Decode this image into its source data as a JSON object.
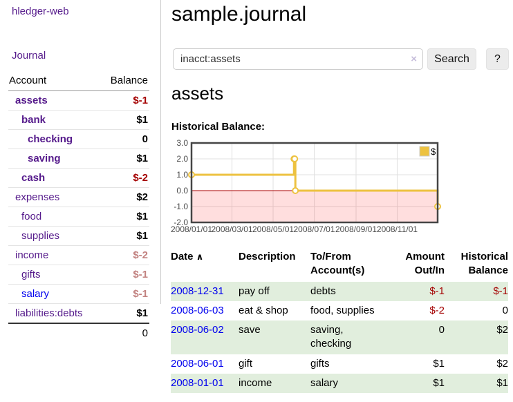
{
  "app": {
    "brand": "hledger-web"
  },
  "colors": {
    "accent_purple": "#551a8b",
    "link_blue": "#0000ee",
    "negative_strong": "#a40000",
    "negative_dim": "#c28280",
    "row_stripe_green": "#e1eedd",
    "chart_line_gold": "#edc240",
    "chart_zero_line": "#aa0000",
    "chart_negative_region": "rgba(255,0,0,0.13)"
  },
  "sidebar": {
    "nav": {
      "journal_label": "Journal"
    },
    "accounts": {
      "headers": {
        "account": "Account",
        "balance": "Balance"
      },
      "rows": [
        {
          "name": "assets",
          "indent": 1,
          "bold": true,
          "blue": false,
          "balance": "$-1",
          "balance_class": "amt-neg"
        },
        {
          "name": "bank",
          "indent": 2,
          "bold": true,
          "blue": false,
          "balance": "$1",
          "balance_class": "amt-pos"
        },
        {
          "name": "checking",
          "indent": 3,
          "bold": true,
          "blue": false,
          "balance": "0",
          "balance_class": "amt-pos"
        },
        {
          "name": "saving",
          "indent": 3,
          "bold": true,
          "blue": false,
          "balance": "$1",
          "balance_class": "amt-pos"
        },
        {
          "name": "cash",
          "indent": 2,
          "bold": true,
          "blue": false,
          "balance": "$-2",
          "balance_class": "amt-neg"
        },
        {
          "name": "expenses",
          "indent": 1,
          "bold": false,
          "blue": false,
          "balance": "$2",
          "balance_class": "amt-pos"
        },
        {
          "name": "food",
          "indent": 2,
          "bold": false,
          "blue": false,
          "balance": "$1",
          "balance_class": "amt-pos"
        },
        {
          "name": "supplies",
          "indent": 2,
          "bold": false,
          "blue": false,
          "balance": "$1",
          "balance_class": "amt-pos"
        },
        {
          "name": "income",
          "indent": 1,
          "bold": false,
          "blue": false,
          "balance": "$-2",
          "balance_class": "amt-negdim"
        },
        {
          "name": "gifts",
          "indent": 2,
          "bold": false,
          "blue": false,
          "balance": "$-1",
          "balance_class": "amt-negdim"
        },
        {
          "name": "salary",
          "indent": 2,
          "bold": false,
          "blue": true,
          "balance": "$-1",
          "balance_class": "amt-negdim"
        },
        {
          "name": "liabilities:debts",
          "indent": 1,
          "bold": false,
          "blue": false,
          "balance": "$1",
          "balance_class": "amt-pos"
        }
      ],
      "total": "0"
    }
  },
  "main": {
    "title": "sample.journal",
    "search": {
      "value": "inacct:assets",
      "clear_icon": "×",
      "button_label": "Search",
      "help_label": "?"
    },
    "section_title": "assets",
    "chart_label": "Historical Balance:"
  },
  "chart_data": {
    "type": "line",
    "title": "Historical Balance:",
    "step": true,
    "x_start": "2008-01-01",
    "x_end": "2008-12-31",
    "ylim": [
      -2,
      3
    ],
    "y_ticks": [
      "3.0",
      "2.0",
      "1.0",
      "0.0",
      "-1.0",
      "-2.0"
    ],
    "x_ticks": [
      "2008/01/01",
      "2008/03/01",
      "2008/05/01",
      "2008/07/01",
      "2008/09/01",
      "2008/11/01"
    ],
    "grid": true,
    "legend": {
      "label": "$",
      "position": "top-right"
    },
    "series": [
      {
        "name": "$",
        "color": "#edc240",
        "points": [
          {
            "date": "2008-01-01",
            "value": 1
          },
          {
            "date": "2008-06-01",
            "value": 2
          },
          {
            "date": "2008-06-02",
            "value": 2
          },
          {
            "date": "2008-06-03",
            "value": 0
          },
          {
            "date": "2008-12-31",
            "value": -1
          }
        ]
      }
    ]
  },
  "register": {
    "sort_icon": "∧",
    "headers": [
      {
        "line1": "Date",
        "line2": "",
        "align": "left"
      },
      {
        "line1": "Description",
        "line2": "",
        "align": "left"
      },
      {
        "line1": "To/From",
        "line2": "Account(s)",
        "align": "left"
      },
      {
        "line1": "Amount",
        "line2": "Out/In",
        "align": "right"
      },
      {
        "line1": "Historical",
        "line2": "Balance",
        "align": "right"
      }
    ],
    "rows": [
      {
        "date": "2008-12-31",
        "description": "pay off",
        "tofrom": "debts",
        "amount": "$-1",
        "amount_neg": true,
        "balance": "$-1",
        "balance_neg": true
      },
      {
        "date": "2008-06-03",
        "description": "eat & shop",
        "tofrom": "food, supplies",
        "amount": "$-2",
        "amount_neg": true,
        "balance": "0",
        "balance_neg": false
      },
      {
        "date": "2008-06-02",
        "description": "save",
        "tofrom": "saving, checking",
        "amount": "0",
        "amount_neg": false,
        "balance": "$2",
        "balance_neg": false
      },
      {
        "date": "2008-06-01",
        "description": "gift",
        "tofrom": "gifts",
        "amount": "$1",
        "amount_neg": false,
        "balance": "$2",
        "balance_neg": false
      },
      {
        "date": "2008-01-01",
        "description": "income",
        "tofrom": "salary",
        "amount": "$1",
        "amount_neg": false,
        "balance": "$1",
        "balance_neg": false
      }
    ]
  }
}
